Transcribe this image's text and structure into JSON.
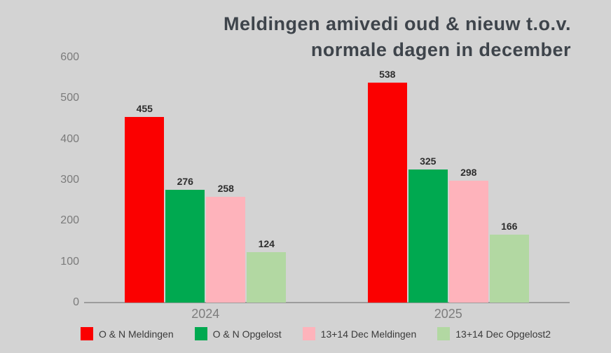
{
  "title": {
    "line1": "Meldingen amivedi oud & nieuw t.o.v.",
    "line2": "normale dagen in december"
  },
  "chart_data": {
    "type": "bar",
    "title": "Meldingen amivedi oud & nieuw t.o.v. normale dagen in december",
    "categories": [
      "2024",
      "2025"
    ],
    "series": [
      {
        "name": "O & N Meldingen",
        "color": "#fb0000",
        "values": [
          455,
          538
        ]
      },
      {
        "name": "O & N Opgelost",
        "color": "#00a950",
        "values": [
          276,
          325
        ]
      },
      {
        "name": "13+14 Dec Meldingen",
        "color": "#feb3bb",
        "values": [
          258,
          298
        ]
      },
      {
        "name": "13+14 Dec Opgelost2",
        "color": "#b2d8a2",
        "values": [
          124,
          166
        ]
      }
    ],
    "ylim": [
      0,
      600
    ],
    "y_ticks": [
      0,
      100,
      200,
      300,
      400,
      500,
      600
    ],
    "grid": false,
    "legend_position": "bottom",
    "value_labels": true
  },
  "colors": {
    "background": "#d3d3d3",
    "axis_line": "#9c9c9c",
    "tick_text": "#7b7b7b",
    "x_label_text": "#7d7d7d",
    "value_text": "#2d2d2d",
    "title_text": "#3e444b",
    "legend_text": "#3a3a3a"
  }
}
